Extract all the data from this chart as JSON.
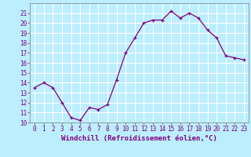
{
  "x": [
    0,
    1,
    2,
    3,
    4,
    5,
    6,
    7,
    8,
    9,
    10,
    11,
    12,
    13,
    14,
    15,
    16,
    17,
    18,
    19,
    20,
    21,
    22,
    23
  ],
  "y": [
    13.5,
    14.0,
    13.5,
    12.0,
    10.5,
    10.2,
    11.5,
    11.3,
    11.8,
    14.3,
    17.0,
    18.5,
    20.0,
    20.3,
    20.3,
    21.2,
    20.5,
    21.0,
    20.5,
    19.3,
    18.5,
    16.7,
    16.5,
    16.3
  ],
  "line_color": "#800080",
  "marker": "+",
  "bg_color": "#bbeeff",
  "grid_color": "#ffffff",
  "xlabel": "Windchill (Refroidissement éolien,°C)",
  "ylim": [
    10,
    22
  ],
  "xlim": [
    -0.5,
    23.5
  ],
  "yticks": [
    10,
    11,
    12,
    13,
    14,
    15,
    16,
    17,
    18,
    19,
    20,
    21
  ],
  "xticks": [
    0,
    1,
    2,
    3,
    4,
    5,
    6,
    7,
    8,
    9,
    10,
    11,
    12,
    13,
    14,
    15,
    16,
    17,
    18,
    19,
    20,
    21,
    22,
    23
  ],
  "tick_fontsize": 5.5,
  "label_fontsize": 6.5
}
